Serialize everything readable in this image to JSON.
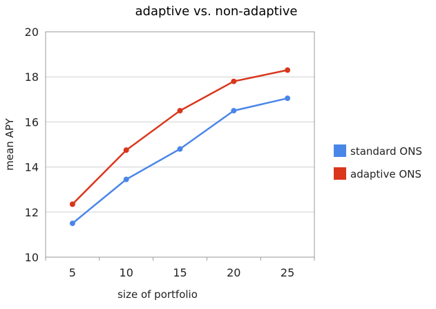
{
  "chart_data": {
    "type": "line",
    "title": "adaptive vs. non-adaptive",
    "xlabel": "size of portfolio",
    "ylabel": "mean APY",
    "x": [
      5,
      10,
      15,
      20,
      25
    ],
    "ylim": [
      10,
      20
    ],
    "yticks": [
      10,
      12,
      14,
      16,
      18,
      20
    ],
    "grid": "horizontal",
    "legend": "right",
    "series": [
      {
        "name": "standard ONS",
        "color": "#4a86e8",
        "values": [
          11.5,
          13.45,
          14.8,
          16.5,
          17.05
        ]
      },
      {
        "name": "adaptive ONS",
        "color": "#d9361c",
        "values": [
          12.35,
          14.75,
          16.5,
          17.8,
          18.3
        ]
      }
    ]
  }
}
